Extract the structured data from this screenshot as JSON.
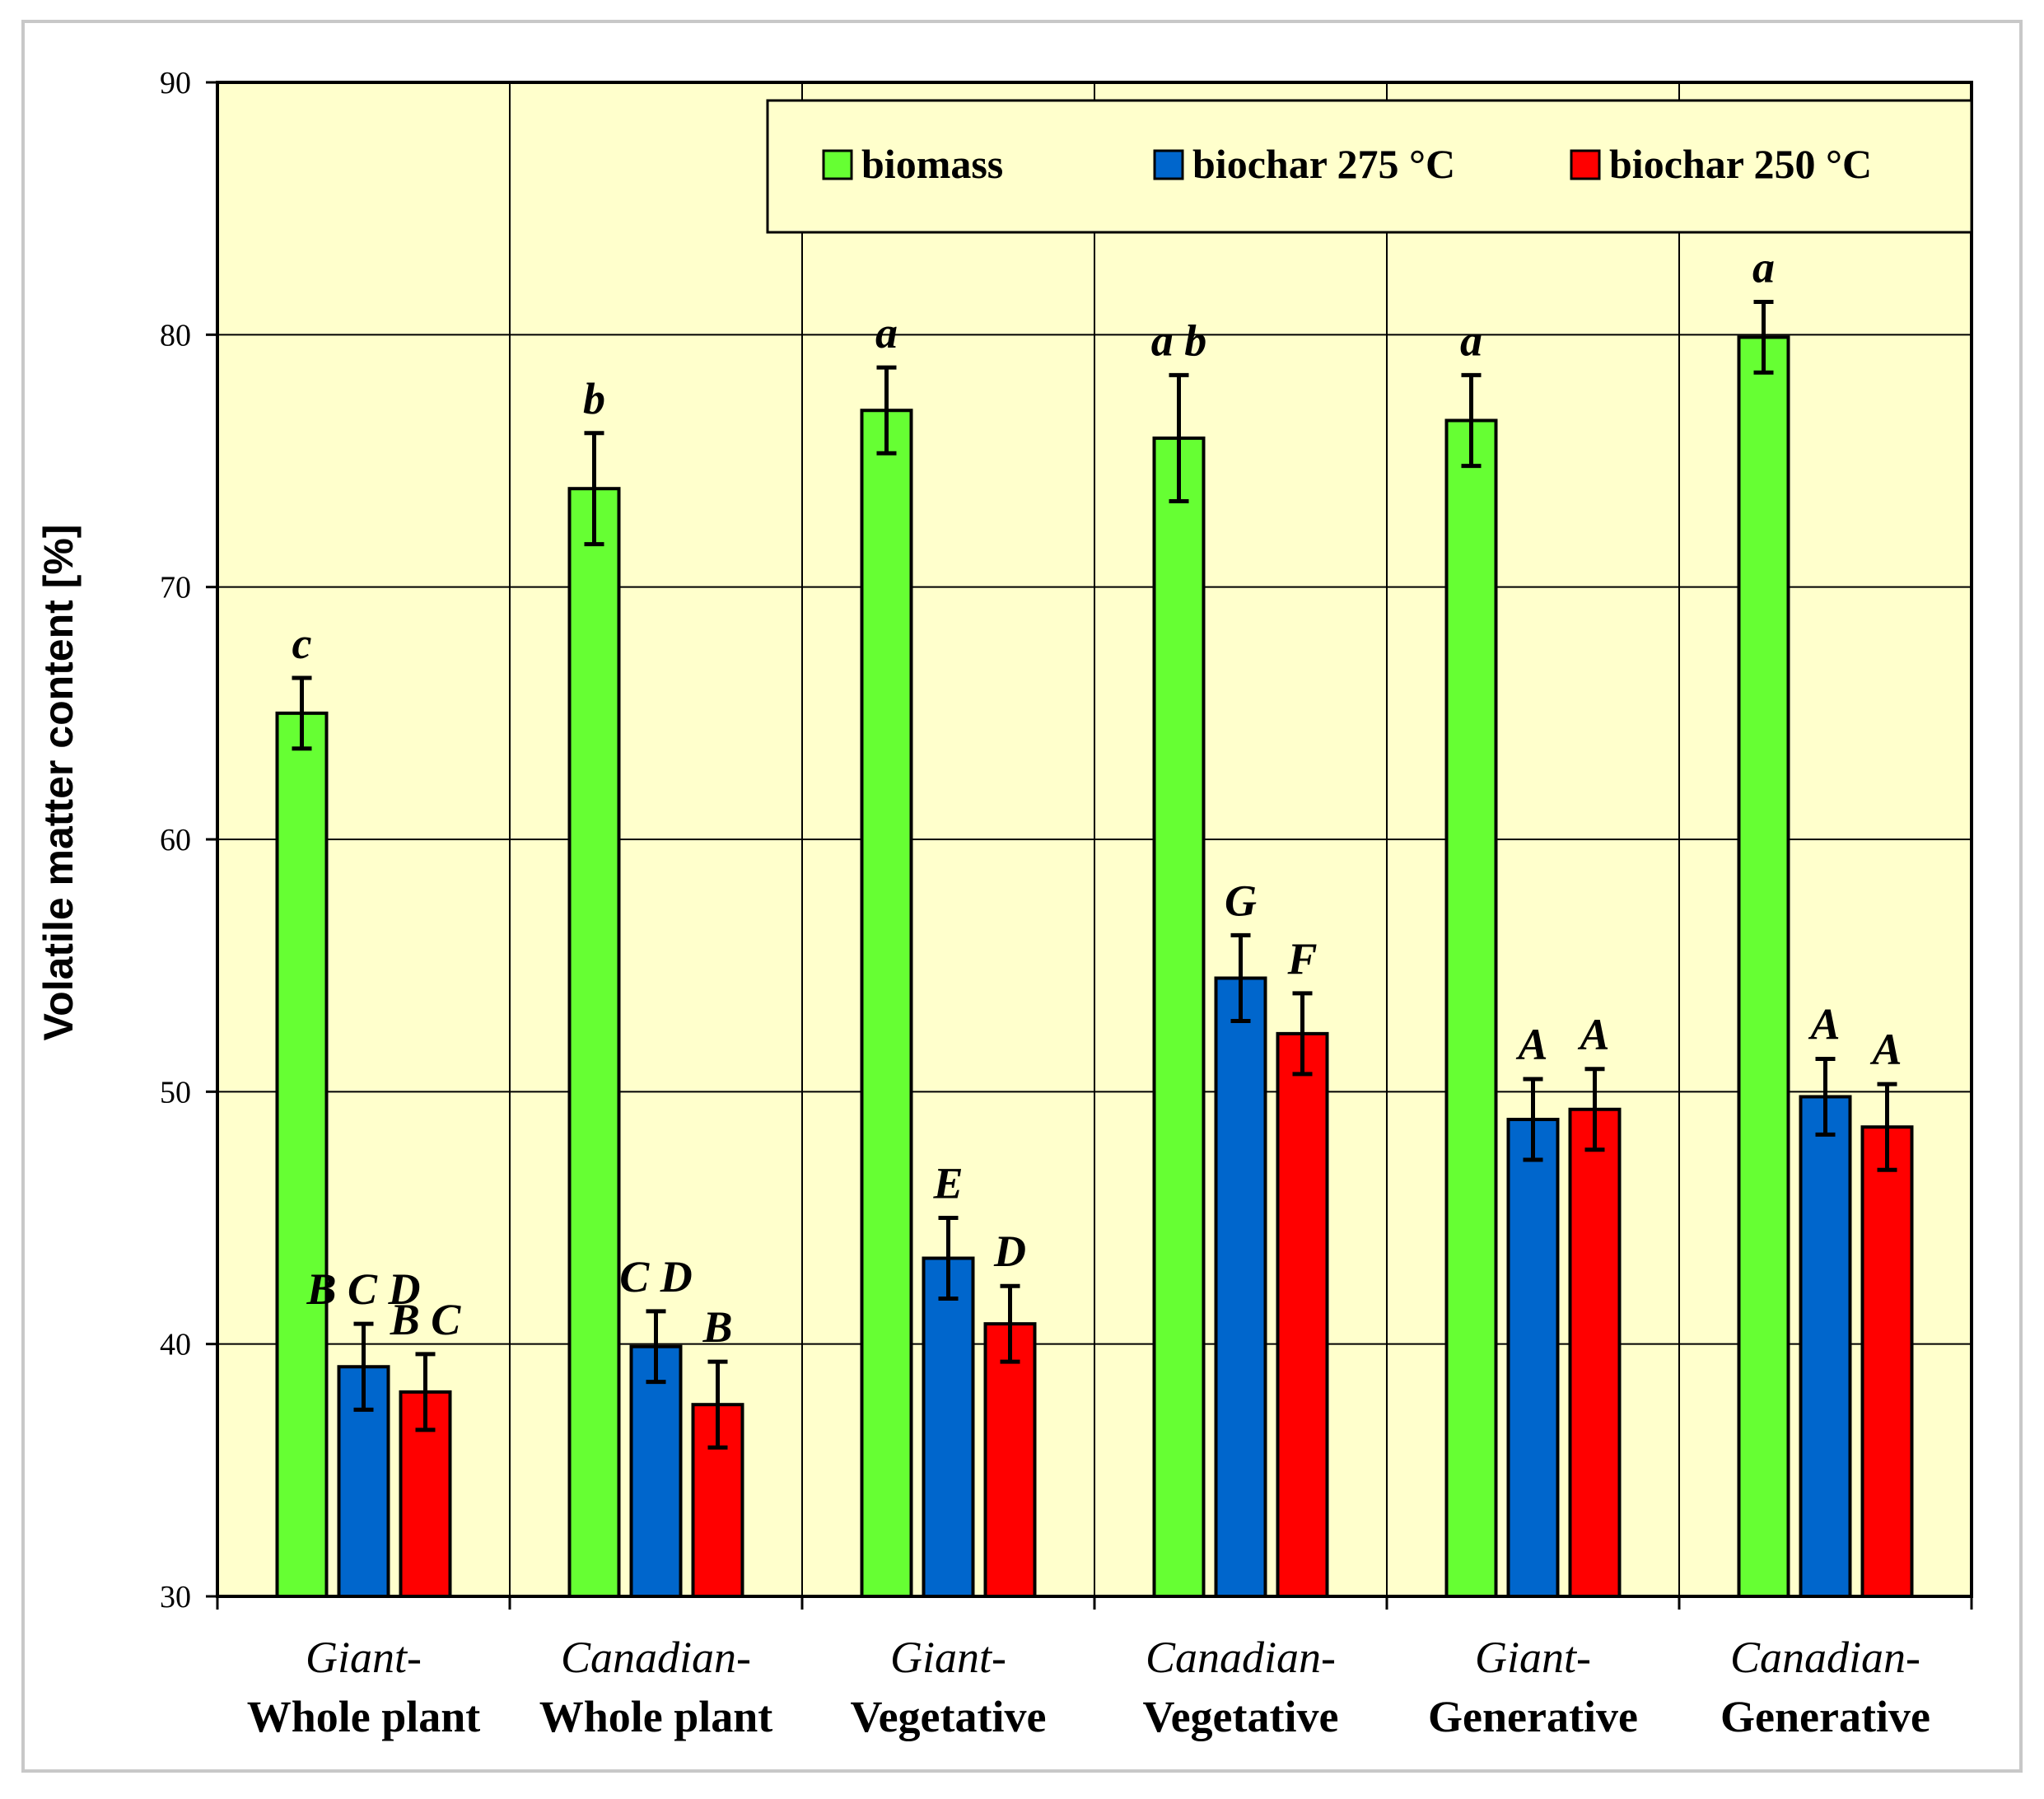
{
  "chart_data": {
    "type": "bar",
    "title": "",
    "xlabel": "",
    "ylabel": "Volatile  matter  content [%]",
    "ylim": [
      30,
      90
    ],
    "yticks": [
      30,
      40,
      50,
      60,
      70,
      80,
      90
    ],
    "grid": true,
    "legend_position": "top-right",
    "categories": [
      {
        "top": "Giant-",
        "bottom": "Whole plant"
      },
      {
        "top": "Canadian-",
        "bottom": "Whole plant"
      },
      {
        "top": "Giant-",
        "bottom": "Vegetative"
      },
      {
        "top": "Canadian-",
        "bottom": "Vegetative"
      },
      {
        "top": "Giant-",
        "bottom": "Generative"
      },
      {
        "top": "Canadian-",
        "bottom": "Generative"
      }
    ],
    "series": [
      {
        "name": "biomass",
        "color": "#66ff33",
        "values": [
          65.0,
          73.9,
          77.0,
          75.9,
          76.6,
          79.9
        ],
        "errors": [
          1.4,
          2.2,
          1.7,
          2.5,
          1.8,
          1.4
        ],
        "labels": [
          "c",
          "b",
          "a",
          "a b",
          "a",
          "a"
        ]
      },
      {
        "name": "biochar 275 °C",
        "color": "#0066cc",
        "values": [
          39.1,
          39.9,
          43.4,
          54.5,
          48.9,
          49.8
        ],
        "errors": [
          1.7,
          1.4,
          1.6,
          1.7,
          1.6,
          1.5
        ],
        "labels": [
          "B C D",
          "C D",
          "E",
          "G",
          "A",
          "A"
        ]
      },
      {
        "name": "biochar 250 °C",
        "color": "#ff0000",
        "values": [
          38.1,
          37.6,
          40.8,
          52.3,
          49.3,
          48.6
        ],
        "errors": [
          1.5,
          1.7,
          1.5,
          1.6,
          1.6,
          1.7
        ],
        "labels": [
          "B C",
          "B",
          "D",
          "F",
          "A",
          "A"
        ]
      }
    ]
  }
}
